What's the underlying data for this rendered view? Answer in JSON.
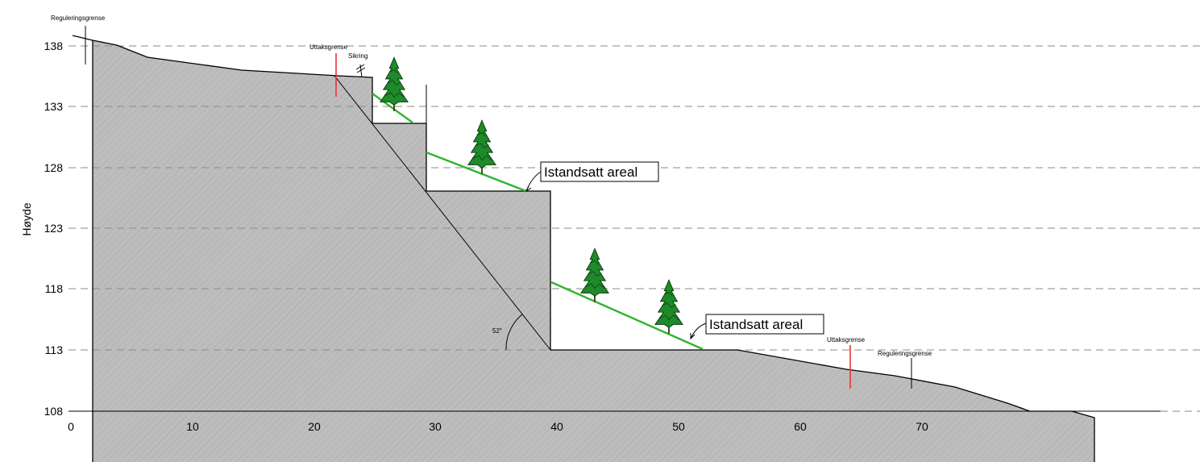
{
  "y_axis_label": "Høyde",
  "y_ticks": [
    "138",
    "133",
    "128",
    "123",
    "118",
    "113",
    "108"
  ],
  "x_ticks": [
    "0",
    "10",
    "20",
    "30",
    "40",
    "50",
    "60",
    "70"
  ],
  "labels": {
    "regulering_left": "Reguleringsgrense",
    "uttak_left": "Uttaksgrense",
    "sikring": "Sikring",
    "callout_upper": "Istandsatt areal",
    "callout_lower": "Istandsatt areal",
    "angle": "52°",
    "uttak_right": "Uttaksgrense",
    "regulering_right": "Reguleringsgrense"
  },
  "colors": {
    "terrain_fill": "#bdbdbd",
    "restored_slope": "#2fb52f",
    "extraction_limit": "#e8333a",
    "tree": "#1f8a2a"
  }
}
